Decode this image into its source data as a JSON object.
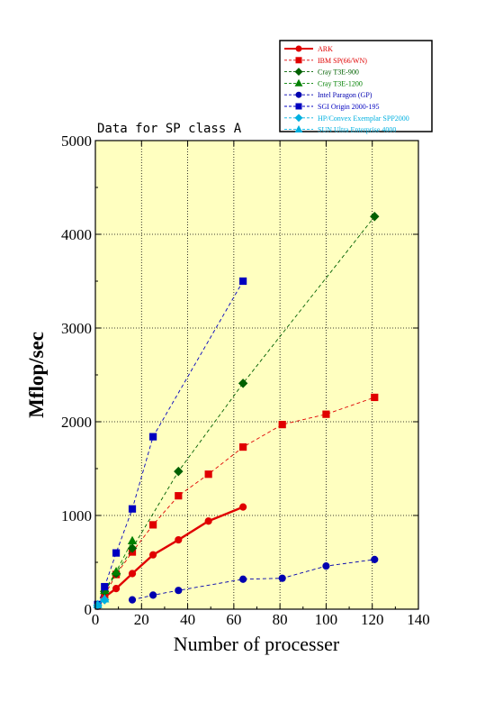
{
  "chart_data": {
    "type": "line",
    "title": "Data for SP class A",
    "xlabel": "Number of processer",
    "ylabel": "Mflop/sec",
    "xlim": [
      0,
      140
    ],
    "ylim": [
      0,
      5000
    ],
    "x_ticks": [
      "0",
      "20",
      "40",
      "60",
      "80",
      "100",
      "120",
      "140"
    ],
    "y_ticks": [
      "0",
      "1000",
      "2000",
      "3000",
      "4000",
      "5000"
    ],
    "grid": true,
    "background": "#ffffc0",
    "legend_position": "top-right, outside plot",
    "series": [
      {
        "name": "ARK",
        "color": "#e00000",
        "marker": "circle",
        "line": "solid",
        "x": [
          1,
          4,
          9,
          16,
          25,
          36,
          49,
          64
        ],
        "y": [
          30,
          130,
          220,
          380,
          580,
          740,
          940,
          1090
        ]
      },
      {
        "name": "IBM SP(66/WN)",
        "color": "#e00000",
        "marker": "square",
        "line": "dashed",
        "x": [
          4,
          9,
          16,
          25,
          36,
          49,
          64,
          81,
          100,
          121
        ],
        "y": [
          150,
          370,
          610,
          900,
          1210,
          1440,
          1730,
          1970,
          2080,
          2260
        ]
      },
      {
        "name": "Cray T3E-900",
        "color": "#006000",
        "marker": "diamond",
        "line": "dashed",
        "x": [
          4,
          9,
          16,
          36,
          64,
          121
        ],
        "y": [
          190,
          380,
          650,
          1470,
          2410,
          4190
        ]
      },
      {
        "name": "Cray T3E-1200",
        "color": "#008000",
        "marker": "triangle",
        "line": "dashed",
        "x": [
          4,
          9,
          16
        ],
        "y": [
          200,
          400,
          730
        ]
      },
      {
        "name": "Intel Paragon (GP)",
        "color": "#0000b0",
        "marker": "circle",
        "line": "dashed",
        "x": [
          16,
          25,
          36,
          64,
          81,
          100,
          121
        ],
        "y": [
          100,
          150,
          200,
          320,
          330,
          460,
          530
        ]
      },
      {
        "name": "SGI Origin 2000-195",
        "color": "#0000c0",
        "marker": "square",
        "line": "dashed",
        "x": [
          1,
          4,
          9,
          16,
          25,
          64
        ],
        "y": [
          50,
          240,
          600,
          1070,
          1840,
          3500
        ]
      },
      {
        "name": "HP/Convex Exemplar SPP2000",
        "color": "#00b0e0",
        "marker": "diamond",
        "line": "dashed",
        "x": [
          1,
          4
        ],
        "y": [
          40,
          100
        ]
      },
      {
        "name": "SUN Ultra Enterprise 4000",
        "color": "#00b0e0",
        "marker": "triangle",
        "line": "dashed",
        "x": [
          1,
          4
        ],
        "y": [
          50,
          110
        ]
      }
    ]
  }
}
